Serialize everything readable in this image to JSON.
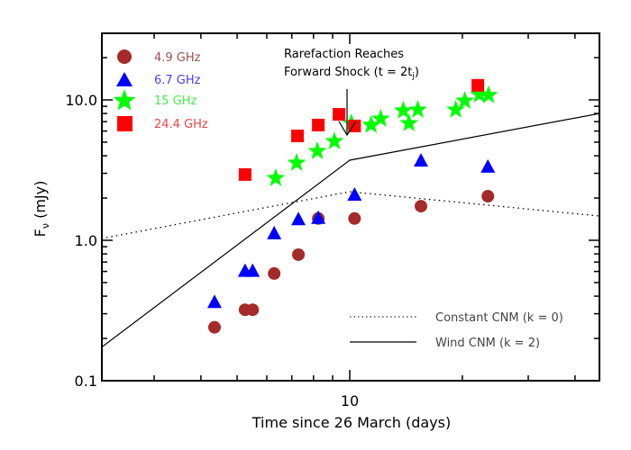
{
  "chart_data": {
    "type": "scatter",
    "title": "",
    "xlabel": "Time since 26 March (days)",
    "ylabel": "F_ν (mJy)",
    "xscale": "log",
    "yscale": "log",
    "xlim": [
      2.17,
      46.5
    ],
    "ylim": [
      0.1,
      30
    ],
    "x_tick_labels": [
      "10"
    ],
    "y_tick_labels": [
      "0.1",
      "1.0",
      "10.0"
    ],
    "grid": false,
    "legend_position": "upper left",
    "series": [
      {
        "name": "4.9 GHz",
        "marker": "circle",
        "color": "#a52a2a",
        "x": [
          4.35,
          5.25,
          5.5,
          6.28,
          7.29,
          8.24,
          10.3,
          15.5,
          23.4
        ],
        "y": [
          0.24,
          0.32,
          0.32,
          0.58,
          0.79,
          1.43,
          1.43,
          1.75,
          2.06
        ]
      },
      {
        "name": "6.7 GHz",
        "marker": "triangle",
        "color": "#0000ff",
        "x": [
          4.35,
          5.25,
          5.5,
          6.28,
          7.29,
          8.24,
          10.3,
          15.5,
          23.4
        ],
        "y": [
          0.36,
          0.6,
          0.6,
          1.11,
          1.4,
          1.43,
          2.09,
          3.66,
          3.31
        ]
      },
      {
        "name": "15 GHz",
        "marker": "star",
        "color": "#00ff00",
        "x": [
          6.34,
          7.21,
          8.19,
          9.1,
          10.1,
          11.4,
          12.1,
          13.9,
          14.4,
          15.2,
          19.2,
          20.3,
          22.2,
          23.5
        ],
        "y": [
          2.77,
          3.56,
          4.31,
          5.07,
          6.81,
          6.62,
          7.33,
          8.38,
          6.81,
          8.5,
          8.5,
          9.85,
          10.9,
          10.8
        ]
      },
      {
        "name": "24.4 GHz",
        "marker": "square",
        "color": "#ff0000",
        "x": [
          5.25,
          7.25,
          8.24,
          9.36,
          10.3,
          22.0
        ],
        "y": [
          2.94,
          5.54,
          6.62,
          7.89,
          6.52,
          12.7
        ]
      }
    ],
    "models": [
      {
        "name": "Constant CNM (k = 0)",
        "style": "dotted",
        "color": "#000000",
        "x": [
          2.17,
          10.0,
          46.5
        ],
        "y": [
          1.03,
          2.22,
          1.49
        ]
      },
      {
        "name": "Wind CNM (k = 2)",
        "style": "solid",
        "color": "#000000",
        "x": [
          2.17,
          10.0,
          46.5
        ],
        "y": [
          0.173,
          3.72,
          8.0
        ]
      }
    ],
    "annotations": [
      {
        "text_line1": "Rarefaction Reaches",
        "text_line2": "Forward Shock (t = 2t",
        "subscript": "j",
        "text_end": ")",
        "arrow_x": 9.9
      }
    ]
  },
  "legend": {
    "items": [
      {
        "label": "4.9 GHz",
        "color": "#a05050"
      },
      {
        "label": "6.7 GHz",
        "color": "#4444ee"
      },
      {
        "label": "15 GHz",
        "color": "#44ee44"
      },
      {
        "label": "24.4 GHz",
        "color": "#ee4444"
      }
    ],
    "models": [
      {
        "label": "Constant CNM (k = 0)"
      },
      {
        "label": "Wind CNM (k = 2)"
      }
    ]
  }
}
